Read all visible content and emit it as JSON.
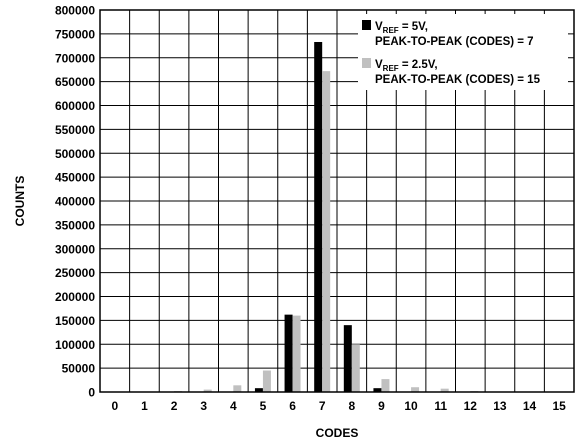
{
  "chart_data": {
    "type": "bar",
    "categories": [
      "0",
      "1",
      "2",
      "3",
      "4",
      "5",
      "6",
      "7",
      "8",
      "9",
      "10",
      "11",
      "12",
      "13",
      "14",
      "15"
    ],
    "series": [
      {
        "name_parts": [
          "V",
          "REF",
          " = 5V,"
        ],
        "name_line2": "PEAK-TO-PEAK (CODES) = 7",
        "color": "#000000",
        "values": [
          0,
          0,
          0,
          0,
          0,
          8000,
          162000,
          733000,
          140000,
          8000,
          0,
          0,
          0,
          0,
          0,
          0
        ]
      },
      {
        "name_parts": [
          "V",
          "REF",
          " = 2.5V,"
        ],
        "name_line2": "PEAK-TO-PEAK (CODES) = 15",
        "color": "#c0c0c0",
        "values": [
          0,
          0,
          2000,
          5000,
          14000,
          45000,
          160000,
          672000,
          100000,
          27000,
          10000,
          7000,
          2000,
          1000,
          0,
          0
        ]
      }
    ],
    "xlabel": "CODES",
    "ylabel": "COUNTS",
    "ylim": [
      0,
      800000
    ],
    "yticks": [
      "0",
      "50000",
      "100000",
      "150000",
      "200000",
      "250000",
      "300000",
      "350000",
      "400000",
      "450000",
      "500000",
      "550000",
      "600000",
      "650000",
      "700000",
      "750000",
      "800000"
    ],
    "grid": true,
    "legend_position": "top-right"
  }
}
